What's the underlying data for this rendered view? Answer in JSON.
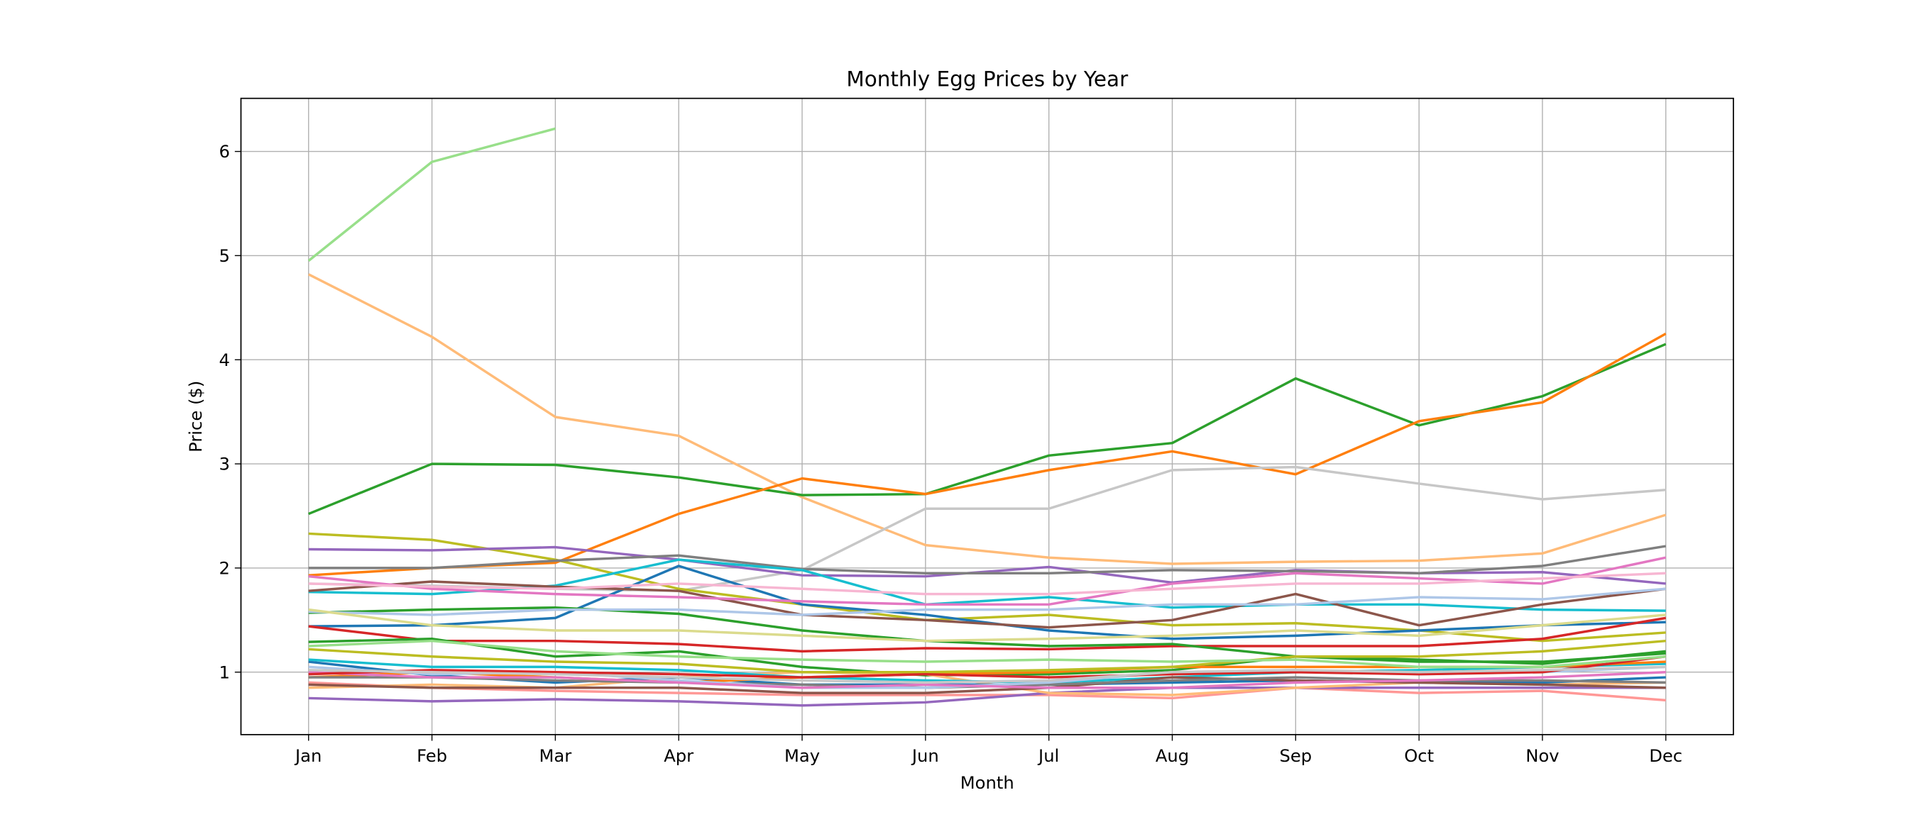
{
  "chart_data": {
    "type": "line",
    "title": "Monthly Egg Prices by Year",
    "xlabel": "Month",
    "ylabel": "Price ($)",
    "categories": [
      "Jan",
      "Feb",
      "Mar",
      "Apr",
      "May",
      "Jun",
      "Jul",
      "Aug",
      "Sep",
      "Oct",
      "Nov",
      "Dec"
    ],
    "ylim": [
      0.4,
      6.51
    ],
    "yticks": [
      1,
      2,
      3,
      4,
      5,
      6
    ],
    "grid": true,
    "series": [
      {
        "color": "#98df8a",
        "values": [
          4.95,
          5.9,
          6.22,
          null,
          null,
          null,
          null,
          null,
          null,
          null,
          null,
          null
        ]
      },
      {
        "color": "#ffbb78",
        "values": [
          4.82,
          4.22,
          3.45,
          3.27,
          2.68,
          2.22,
          2.1,
          2.04,
          2.06,
          2.07,
          2.14,
          2.51
        ]
      },
      {
        "color": "#2ca02c",
        "values": [
          2.52,
          3.0,
          2.99,
          2.87,
          2.7,
          2.71,
          3.08,
          3.2,
          3.82,
          3.37,
          3.65,
          4.15
        ]
      },
      {
        "color": "#ff7f0e",
        "values": [
          1.93,
          2.0,
          2.05,
          2.52,
          2.86,
          2.71,
          2.94,
          3.12,
          2.9,
          3.41,
          3.59,
          4.25
        ]
      },
      {
        "color": "#c7c7c7",
        "values": [
          1.85,
          1.83,
          1.8,
          1.78,
          1.98,
          2.57,
          2.57,
          2.94,
          2.97,
          2.81,
          2.66,
          2.75
        ]
      },
      {
        "color": "#bcbd22",
        "values": [
          2.33,
          2.27,
          2.08,
          1.8,
          1.65,
          1.5,
          1.55,
          1.45,
          1.47,
          1.4,
          1.3,
          1.38
        ]
      },
      {
        "color": "#9467bd",
        "values": [
          2.18,
          2.17,
          2.2,
          2.08,
          1.93,
          1.92,
          2.01,
          1.86,
          1.98,
          1.95,
          1.96,
          1.85
        ]
      },
      {
        "color": "#7f7f7f",
        "values": [
          2.0,
          2.0,
          2.07,
          2.12,
          1.99,
          1.95,
          1.95,
          1.98,
          1.97,
          1.95,
          2.02,
          2.21
        ]
      },
      {
        "color": "#1f77b4",
        "values": [
          1.44,
          1.45,
          1.52,
          2.02,
          1.65,
          1.55,
          1.4,
          1.32,
          1.35,
          1.4,
          1.45,
          1.48
        ]
      },
      {
        "color": "#17becf",
        "values": [
          1.77,
          1.75,
          1.83,
          2.08,
          1.98,
          1.65,
          1.72,
          1.62,
          1.65,
          1.65,
          1.6,
          1.59
        ]
      },
      {
        "color": "#8c564b",
        "values": [
          1.78,
          1.87,
          1.82,
          1.78,
          1.55,
          1.5,
          1.43,
          1.5,
          1.75,
          1.45,
          1.65,
          1.8
        ]
      },
      {
        "color": "#e377c2",
        "values": [
          1.92,
          1.8,
          1.75,
          1.72,
          1.68,
          1.65,
          1.65,
          1.85,
          1.95,
          1.9,
          1.85,
          2.1
        ]
      },
      {
        "color": "#d62728",
        "values": [
          1.44,
          1.3,
          1.3,
          1.27,
          1.2,
          1.23,
          1.22,
          1.25,
          1.25,
          1.25,
          1.32,
          1.52
        ]
      },
      {
        "color": "#2ca02c",
        "values": [
          1.57,
          1.6,
          1.62,
          1.56,
          1.4,
          1.3,
          1.25,
          1.27,
          1.15,
          1.1,
          1.1,
          1.18
        ]
      },
      {
        "color": "#2ca02c",
        "values": [
          1.29,
          1.32,
          1.15,
          1.2,
          1.05,
          0.97,
          0.98,
          1.02,
          1.15,
          1.12,
          1.08,
          1.2
        ]
      },
      {
        "color": "#aec7e8",
        "values": [
          1.58,
          1.55,
          1.6,
          1.6,
          1.55,
          1.6,
          1.6,
          1.65,
          1.65,
          1.72,
          1.7,
          1.8
        ]
      },
      {
        "color": "#f7b6d2",
        "values": [
          1.85,
          1.82,
          1.8,
          1.85,
          1.8,
          1.75,
          1.75,
          1.8,
          1.85,
          1.85,
          1.9,
          1.95
        ]
      },
      {
        "color": "#dbdb8d",
        "values": [
          1.6,
          1.45,
          1.4,
          1.4,
          1.35,
          1.3,
          1.32,
          1.35,
          1.4,
          1.35,
          1.45,
          1.55
        ]
      },
      {
        "color": "#ff9896",
        "values": [
          0.9,
          0.85,
          0.82,
          0.8,
          0.78,
          0.78,
          0.78,
          0.75,
          0.85,
          0.8,
          0.82,
          0.73
        ]
      },
      {
        "color": "#9467bd",
        "values": [
          0.75,
          0.72,
          0.74,
          0.72,
          0.68,
          0.71,
          0.8,
          0.85,
          0.85,
          0.85,
          0.85,
          0.85
        ]
      },
      {
        "color": "#ffbb78",
        "values": [
          0.85,
          0.88,
          0.85,
          0.95,
          1.0,
          0.98,
          0.8,
          0.78,
          0.85,
          0.9,
          0.88,
          0.9
        ]
      },
      {
        "color": "#1f77b4",
        "values": [
          1.1,
          0.97,
          0.9,
          0.95,
          0.88,
          0.88,
          0.88,
          0.9,
          0.92,
          0.9,
          0.9,
          0.95
        ]
      },
      {
        "color": "#17becf",
        "values": [
          1.12,
          1.05,
          1.05,
          1.02,
          0.95,
          0.92,
          0.9,
          0.95,
          1.0,
          1.02,
          1.05,
          1.08
        ]
      },
      {
        "color": "#ff7f0e",
        "values": [
          0.95,
          1.0,
          0.95,
          0.9,
          0.95,
          0.98,
          1.0,
          1.05,
          1.05,
          1.05,
          1.05,
          1.1
        ]
      },
      {
        "color": "#bcbd22",
        "values": [
          1.22,
          1.15,
          1.1,
          1.08,
          1.0,
          1.0,
          1.02,
          1.05,
          1.15,
          1.15,
          1.2,
          1.3
        ]
      },
      {
        "color": "#8c564b",
        "values": [
          0.88,
          0.85,
          0.85,
          0.85,
          0.8,
          0.8,
          0.85,
          0.95,
          0.92,
          0.9,
          0.88,
          0.85
        ]
      },
      {
        "color": "#7f7f7f",
        "values": [
          0.95,
          0.95,
          0.92,
          0.9,
          0.88,
          0.85,
          0.88,
          0.92,
          0.95,
          0.92,
          0.92,
          0.9
        ]
      },
      {
        "color": "#aec7e8",
        "values": [
          1.05,
          0.98,
          1.0,
          0.92,
          0.85,
          0.85,
          0.9,
          1.0,
          1.02,
          0.98,
          1.0,
          1.05
        ]
      },
      {
        "color": "#e377c2",
        "values": [
          1.0,
          0.95,
          0.95,
          0.9,
          0.85,
          0.88,
          0.85,
          0.85,
          0.9,
          0.92,
          0.95,
          1.0
        ]
      },
      {
        "color": "#d62728",
        "values": [
          0.98,
          1.02,
          1.0,
          0.98,
          0.95,
          0.98,
          0.95,
          0.98,
          1.0,
          0.98,
          1.0,
          1.15
        ]
      },
      {
        "color": "#98df8a",
        "values": [
          1.25,
          1.3,
          1.2,
          1.15,
          1.12,
          1.1,
          1.12,
          1.1,
          1.12,
          1.05,
          1.05,
          1.15
        ]
      },
      {
        "color": "#c7c7c7",
        "values": [
          1.02,
          1.0,
          0.98,
          0.95,
          0.92,
          0.9,
          0.92,
          1.0,
          1.02,
          1.0,
          1.02,
          1.05
        ]
      }
    ]
  }
}
